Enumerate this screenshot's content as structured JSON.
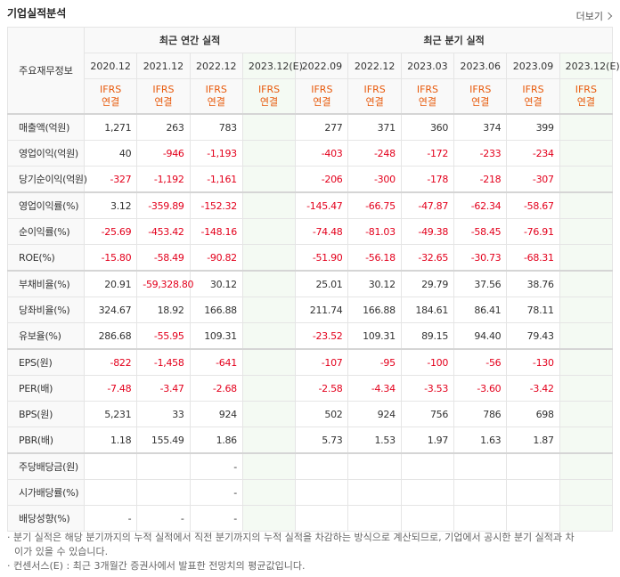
{
  "header": {
    "title": "기업실적분석",
    "more": "더보기"
  },
  "table": {
    "corner": "주요재무정보",
    "groups": [
      "최근 연간 실적",
      "최근 분기 실적"
    ],
    "group_spans": [
      4,
      6
    ],
    "columns": [
      "2020.12",
      "2021.12",
      "2022.12",
      "2023.12(E)",
      "2022.09",
      "2022.12",
      "2023.03",
      "2023.06",
      "2023.09",
      "2023.12(E)"
    ],
    "estimate": [
      false,
      false,
      false,
      true,
      false,
      false,
      false,
      false,
      false,
      true
    ],
    "basis": [
      "IFRS\n연결",
      "IFRS\n연결",
      "IFRS\n연결",
      "IFRS\n연결",
      "IFRS\n연결",
      "IFRS\n연결",
      "IFRS\n연결",
      "IFRS\n연결",
      "IFRS\n연결",
      "IFRS\n연결"
    ],
    "row_groups": [
      3,
      3,
      3,
      4,
      3
    ],
    "rows": [
      {
        "label": "매출액(억원)",
        "cells": [
          "1,271",
          "263",
          "783",
          null,
          "277",
          "371",
          "360",
          "374",
          "399",
          null
        ]
      },
      {
        "label": "영업이익(억원)",
        "cells": [
          "40",
          "-946",
          "-1,193",
          null,
          "-403",
          "-248",
          "-172",
          "-233",
          "-234",
          null
        ]
      },
      {
        "label": "당기순이익(억원)",
        "cells": [
          "-327",
          "-1,192",
          "-1,161",
          null,
          "-206",
          "-300",
          "-178",
          "-218",
          "-307",
          null
        ]
      },
      {
        "label": "영업이익률(%)",
        "cells": [
          "3.12",
          "-359.89",
          "-152.32",
          null,
          "-145.47",
          "-66.75",
          "-47.87",
          "-62.34",
          "-58.67",
          null
        ]
      },
      {
        "label": "순이익률(%)",
        "cells": [
          "-25.69",
          "-453.42",
          "-148.16",
          null,
          "-74.48",
          "-81.03",
          "-49.38",
          "-58.45",
          "-76.91",
          null
        ]
      },
      {
        "label": "ROE(%)",
        "cells": [
          "-15.80",
          "-58.49",
          "-90.82",
          null,
          "-51.90",
          "-56.18",
          "-32.65",
          "-30.73",
          "-68.31",
          null
        ]
      },
      {
        "label": "부채비율(%)",
        "cells": [
          "20.91",
          "-59,328.80",
          "30.12",
          null,
          "25.01",
          "30.12",
          "29.79",
          "37.56",
          "38.76",
          null
        ]
      },
      {
        "label": "당좌비율(%)",
        "cells": [
          "324.67",
          "18.92",
          "166.88",
          null,
          "211.74",
          "166.88",
          "184.61",
          "86.41",
          "78.11",
          null
        ]
      },
      {
        "label": "유보율(%)",
        "cells": [
          "286.68",
          "-55.95",
          "109.31",
          null,
          "-23.52",
          "109.31",
          "89.15",
          "94.40",
          "79.43",
          null
        ]
      },
      {
        "label": "EPS(원)",
        "cells": [
          "-822",
          "-1,458",
          "-641",
          null,
          "-107",
          "-95",
          "-100",
          "-56",
          "-130",
          null
        ]
      },
      {
        "label": "PER(배)",
        "cells": [
          "-7.48",
          "-3.47",
          "-2.68",
          null,
          "-2.58",
          "-4.34",
          "-3.53",
          "-3.60",
          "-3.42",
          null
        ]
      },
      {
        "label": "BPS(원)",
        "cells": [
          "5,231",
          "33",
          "924",
          null,
          "502",
          "924",
          "756",
          "786",
          "698",
          null
        ]
      },
      {
        "label": "PBR(배)",
        "cells": [
          "1.18",
          "155.49",
          "1.86",
          null,
          "5.73",
          "1.53",
          "1.97",
          "1.63",
          "1.87",
          null
        ]
      },
      {
        "label": "주당배당금(원)",
        "cells": [
          null,
          null,
          "-",
          null,
          null,
          null,
          null,
          null,
          null,
          null
        ]
      },
      {
        "label": "시가배당률(%)",
        "cells": [
          null,
          null,
          "-",
          null,
          null,
          null,
          null,
          null,
          null,
          null
        ]
      },
      {
        "label": "배당성향(%)",
        "cells": [
          "-",
          "-",
          "-",
          null,
          null,
          null,
          null,
          null,
          null,
          null
        ]
      }
    ]
  },
  "notes": [
    "분기 실적은 해당 분기까지의 누적 실적에서 직전 분기까지의 누적 실적을 차감하는 방식으로 계산되므로, 기업에서 공시한 분기 실적과 차이가 있을 수 있습니다.",
    "컨센서스(E) : 최근 3개월간 증권사에서 발표한 전망치의 평균값입니다."
  ]
}
